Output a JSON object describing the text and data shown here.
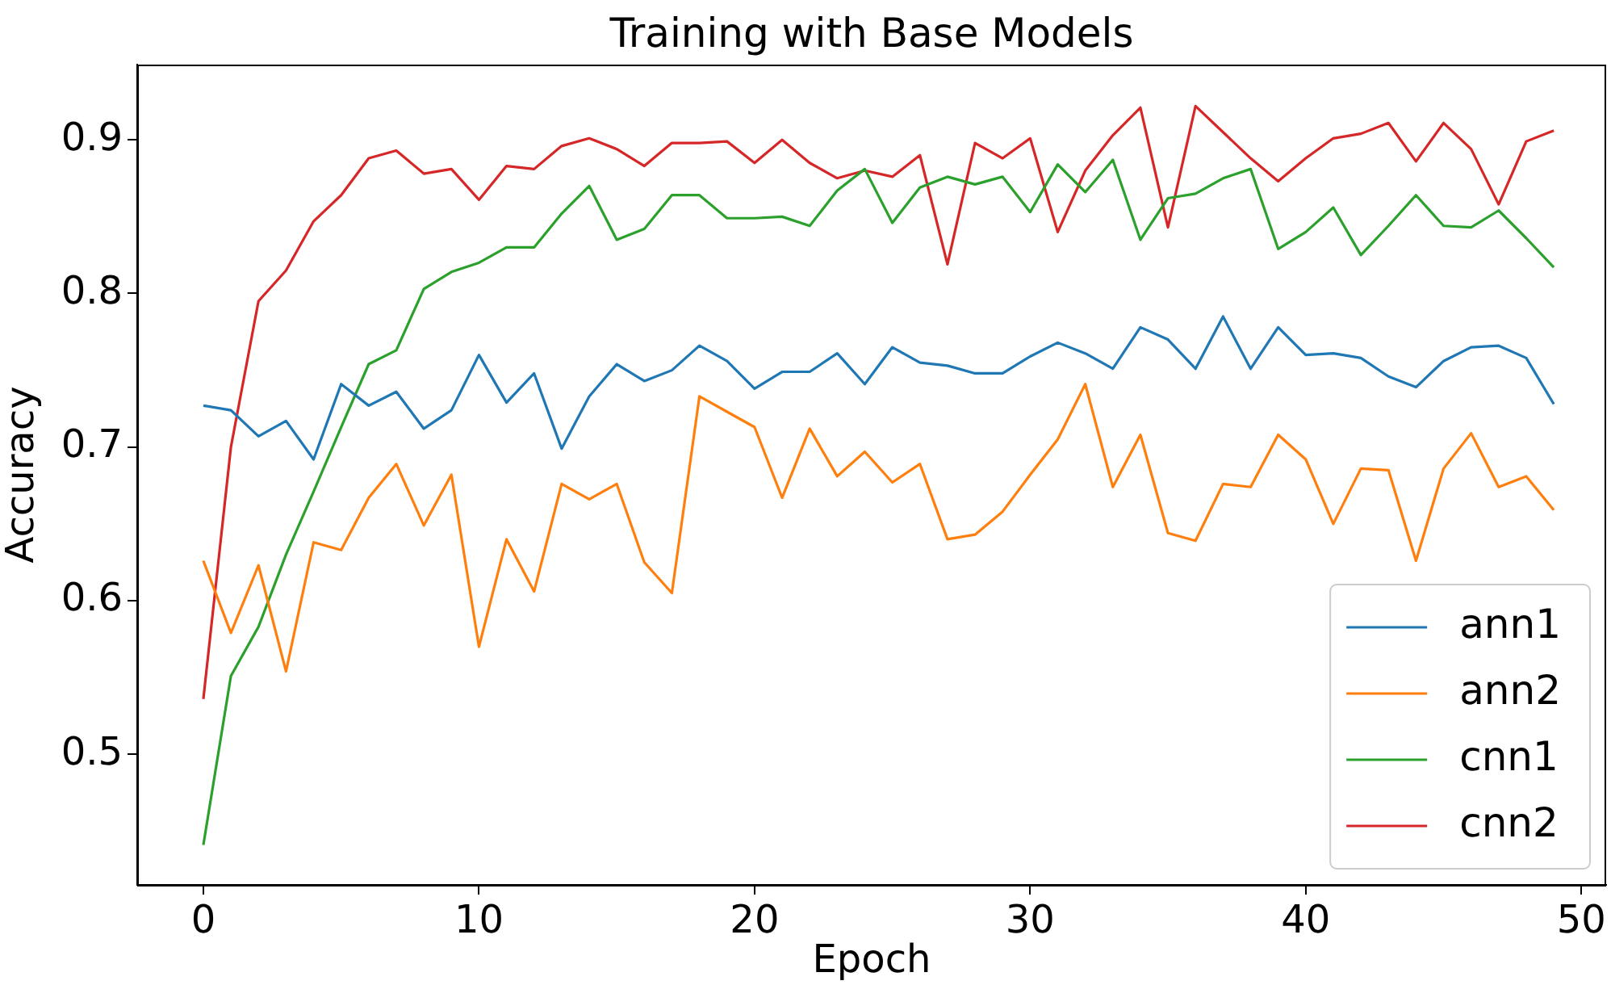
{
  "chart_data": {
    "type": "line",
    "title": "Training with Base Models",
    "xlabel": "Epoch",
    "ylabel": "Accuracy",
    "x": [
      0,
      1,
      2,
      3,
      4,
      5,
      6,
      7,
      8,
      9,
      10,
      11,
      12,
      13,
      14,
      15,
      16,
      17,
      18,
      19,
      20,
      21,
      22,
      23,
      24,
      25,
      26,
      27,
      28,
      29,
      30,
      31,
      32,
      33,
      34,
      35,
      36,
      37,
      38,
      39,
      40,
      41,
      42,
      43,
      44,
      45,
      46,
      47,
      48,
      49
    ],
    "series": [
      {
        "name": "ann1",
        "color": "#1f77b4",
        "values": [
          0.727,
          0.724,
          0.707,
          0.717,
          0.692,
          0.741,
          0.727,
          0.736,
          0.712,
          0.724,
          0.76,
          0.729,
          0.748,
          0.699,
          0.733,
          0.754,
          0.743,
          0.75,
          0.766,
          0.756,
          0.738,
          0.749,
          0.749,
          0.761,
          0.741,
          0.765,
          0.755,
          0.753,
          0.748,
          0.748,
          0.759,
          0.768,
          0.761,
          0.751,
          0.778,
          0.77,
          0.751,
          0.785,
          0.751,
          0.778,
          0.76,
          0.761,
          0.758,
          0.746,
          0.739,
          0.756,
          0.765,
          0.766,
          0.758,
          0.728
        ]
      },
      {
        "name": "ann2",
        "color": "#ff7f0e",
        "values": [
          0.626,
          0.579,
          0.623,
          0.554,
          0.638,
          0.633,
          0.667,
          0.689,
          0.649,
          0.682,
          0.57,
          0.64,
          0.606,
          0.676,
          0.666,
          0.676,
          0.625,
          0.605,
          0.733,
          0.723,
          0.713,
          0.667,
          0.712,
          0.681,
          0.697,
          0.677,
          0.689,
          0.64,
          0.643,
          0.658,
          0.682,
          0.705,
          0.741,
          0.674,
          0.708,
          0.644,
          0.639,
          0.676,
          0.674,
          0.708,
          0.692,
          0.65,
          0.686,
          0.685,
          0.626,
          0.686,
          0.709,
          0.674,
          0.681,
          0.659
        ]
      },
      {
        "name": "cnn1",
        "color": "#2ca02c",
        "values": [
          0.441,
          0.551,
          0.583,
          0.63,
          0.671,
          0.713,
          0.754,
          0.763,
          0.803,
          0.814,
          0.82,
          0.83,
          0.83,
          0.852,
          0.87,
          0.835,
          0.842,
          0.864,
          0.864,
          0.849,
          0.849,
          0.85,
          0.844,
          0.867,
          0.881,
          0.846,
          0.869,
          0.876,
          0.871,
          0.876,
          0.853,
          0.884,
          0.866,
          0.887,
          0.835,
          0.862,
          0.865,
          0.875,
          0.881,
          0.829,
          0.84,
          0.856,
          0.825,
          0.844,
          0.864,
          0.844,
          0.843,
          0.854,
          0.836,
          0.817
        ]
      },
      {
        "name": "cnn2",
        "color": "#d62728",
        "values": [
          0.536,
          0.7,
          0.795,
          0.815,
          0.847,
          0.864,
          0.888,
          0.893,
          0.878,
          0.881,
          0.861,
          0.883,
          0.881,
          0.896,
          0.901,
          0.894,
          0.883,
          0.898,
          0.898,
          0.899,
          0.885,
          0.9,
          0.885,
          0.875,
          0.88,
          0.876,
          0.89,
          0.819,
          0.898,
          0.888,
          0.901,
          0.84,
          0.88,
          0.903,
          0.921,
          0.843,
          0.922,
          0.905,
          0.888,
          0.873,
          0.888,
          0.901,
          0.904,
          0.911,
          0.886,
          0.911,
          0.894,
          0.858,
          0.899,
          0.906
        ]
      }
    ],
    "xlim": [
      -2.4,
      50.9
    ],
    "xticks": [
      0,
      10,
      20,
      30,
      40,
      50
    ],
    "ylim": [
      0.415,
      0.949
    ],
    "yticks": [
      0.5,
      0.6,
      0.7,
      0.8,
      0.9
    ],
    "grid": false,
    "legend": "bottom right",
    "marker": "none",
    "line_style": "solid"
  }
}
